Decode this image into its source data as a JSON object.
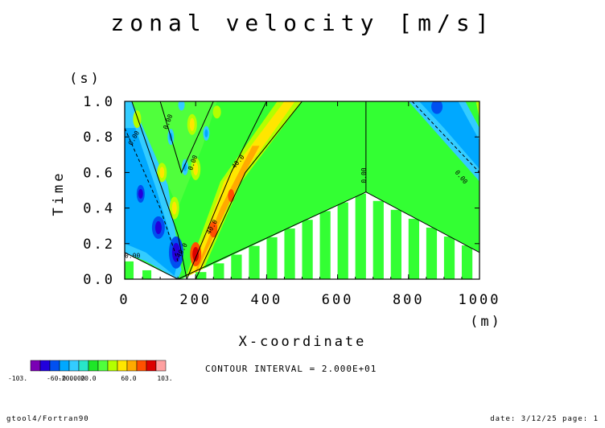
{
  "chart_data": {
    "type": "heatmap",
    "title": "zonal velocity [m/s]",
    "xlabel": "X-coordinate",
    "xunit": "(m)",
    "ylabel": "Time",
    "yunit": "(s)",
    "xlim": [
      0,
      1000
    ],
    "ylim": [
      0.0,
      1.0
    ],
    "x_ticks": [
      "0",
      "200",
      "400",
      "600",
      "800",
      "1000"
    ],
    "y_ticks": [
      "0.0",
      "0.2",
      "0.4",
      "0.6",
      "0.8",
      "1.0"
    ],
    "contour_interval": "CONTOUR INTERVAL = 2.000E+01",
    "contour_labels": [
      "0.00",
      "0.00",
      "0.00",
      "0.00",
      "0.00",
      "40.0",
      "40.0",
      "-40.0",
      "0.00"
    ],
    "colorbar": {
      "labels": [
        "-103.",
        "-60.0",
        "-20.0",
        "0.00",
        "20.0",
        "60.0",
        "103."
      ],
      "colors": [
        "#7a00b4",
        "#2200dc",
        "#0050f0",
        "#00a8ff",
        "#33ccff",
        "#28e6c8",
        "#1ee628",
        "#50ff3c",
        "#b4ff00",
        "#ffe600",
        "#ffaa00",
        "#ff5000",
        "#dc0000",
        "#ffa0a0"
      ]
    },
    "series": [
      {
        "x": [
          0,
          25,
          50,
          100,
          150,
          175,
          200,
          250,
          300,
          400,
          500,
          600,
          680,
          750,
          800,
          850,
          900,
          950,
          1000
        ],
        "t": 0.0,
        "values": [
          20,
          20,
          20,
          0,
          -60,
          0,
          100,
          40,
          20,
          20,
          20,
          20,
          20,
          20,
          20,
          20,
          20,
          20,
          20
        ]
      },
      {
        "x": [
          0,
          50,
          100,
          150,
          200,
          250,
          300,
          350,
          400,
          500,
          600,
          680,
          800,
          900,
          1000
        ],
        "t": 0.5,
        "values": [
          -40,
          -80,
          0,
          20,
          40,
          80,
          40,
          20,
          20,
          20,
          20,
          20,
          20,
          20,
          20
        ]
      },
      {
        "x": [
          0,
          50,
          100,
          150,
          200,
          250,
          300,
          400,
          500,
          600,
          680,
          800,
          850,
          900,
          950,
          1000
        ],
        "t": 1.0,
        "values": [
          20,
          -20,
          40,
          -20,
          40,
          20,
          40,
          40,
          20,
          20,
          20,
          20,
          0,
          -40,
          -60,
          20
        ]
      }
    ]
  },
  "footer": {
    "left": "gtool4/Fortran90",
    "right": "date: 3/12/25 page: 1"
  }
}
